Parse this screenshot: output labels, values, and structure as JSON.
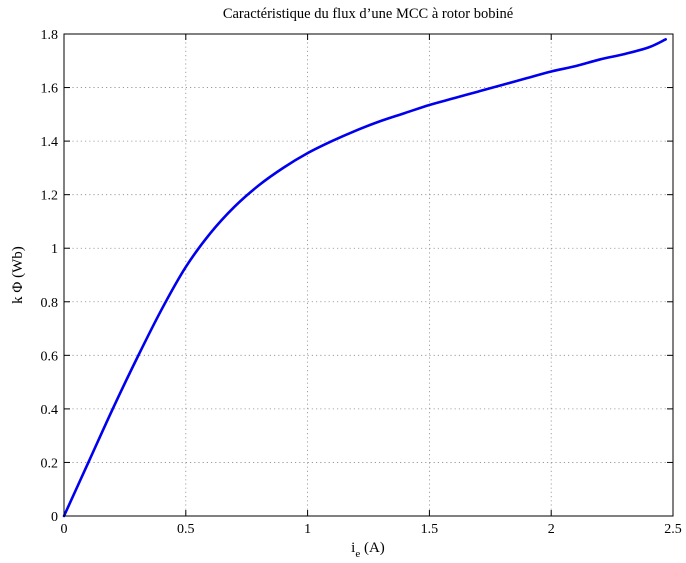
{
  "chart_data": {
    "type": "line",
    "title": "Caractéristique du flux d’une MCC à rotor bobiné",
    "xlabel": {
      "main": "i",
      "sub": "e",
      "rest": " (A)"
    },
    "ylabel": "k Φ (Wb)",
    "xlim": [
      0,
      2.5
    ],
    "ylim": [
      0,
      1.8
    ],
    "x_ticks": [
      0,
      0.5,
      1,
      1.5,
      2,
      2.5
    ],
    "x_tick_labels": [
      "0",
      "0.5",
      "1",
      "1.5",
      "2",
      "2.5"
    ],
    "y_ticks": [
      0,
      0.2,
      0.4,
      0.6,
      0.8,
      1,
      1.2,
      1.4,
      1.6,
      1.8
    ],
    "y_tick_labels": [
      "0",
      "0.2",
      "0.4",
      "0.6",
      "0.8",
      "1",
      "1.2",
      "1.4",
      "1.6",
      "1.8"
    ],
    "grid": true,
    "series": [
      {
        "color": "#0000ee",
        "x": [
          0,
          0.1,
          0.2,
          0.3,
          0.4,
          0.5,
          0.6,
          0.7,
          0.8,
          0.9,
          1.0,
          1.1,
          1.2,
          1.3,
          1.4,
          1.5,
          1.6,
          1.7,
          1.8,
          1.9,
          2.0,
          2.1,
          2.2,
          2.3,
          2.4,
          2.47
        ],
        "y": [
          0,
          0.2,
          0.4,
          0.59,
          0.77,
          0.93,
          1.055,
          1.155,
          1.235,
          1.3,
          1.355,
          1.4,
          1.44,
          1.475,
          1.505,
          1.535,
          1.56,
          1.585,
          1.61,
          1.635,
          1.66,
          1.68,
          1.705,
          1.725,
          1.75,
          1.78
        ]
      }
    ]
  }
}
